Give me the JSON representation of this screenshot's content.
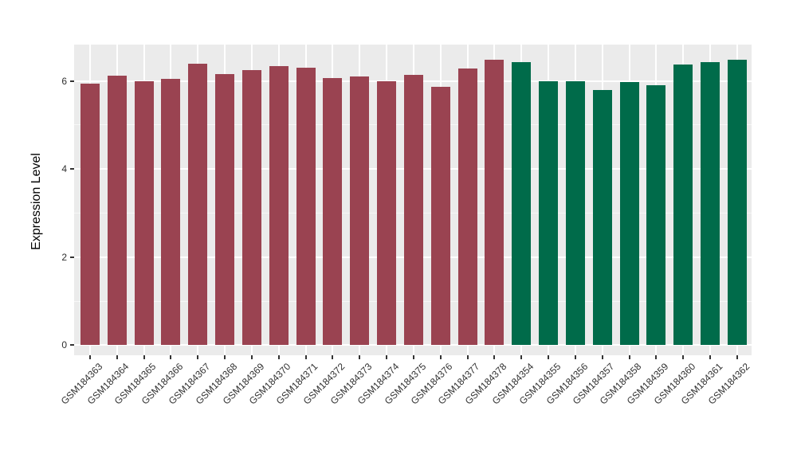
{
  "chart_data": {
    "type": "bar",
    "title": "",
    "xlabel": "",
    "ylabel": "Expression Level",
    "ylim": [
      0,
      6.8
    ],
    "yticks": [
      0,
      2,
      4,
      6
    ],
    "grid": "on",
    "legend_position": "none",
    "panel_background": "#EBEBEB",
    "grid_color": "#FFFFFF",
    "group_colors": {
      "red": "#9A4351",
      "green": "#006B4A"
    },
    "bars": [
      {
        "label": "GSM184363",
        "value": 5.94,
        "group": "red"
      },
      {
        "label": "GSM184364",
        "value": 6.12,
        "group": "red"
      },
      {
        "label": "GSM184365",
        "value": 6.0,
        "group": "red"
      },
      {
        "label": "GSM184366",
        "value": 6.05,
        "group": "red"
      },
      {
        "label": "GSM184367",
        "value": 6.4,
        "group": "red"
      },
      {
        "label": "GSM184368",
        "value": 6.16,
        "group": "red"
      },
      {
        "label": "GSM184369",
        "value": 6.25,
        "group": "red"
      },
      {
        "label": "GSM184370",
        "value": 6.34,
        "group": "red"
      },
      {
        "label": "GSM184371",
        "value": 6.31,
        "group": "red"
      },
      {
        "label": "GSM184372",
        "value": 6.07,
        "group": "red"
      },
      {
        "label": "GSM184373",
        "value": 6.1,
        "group": "red"
      },
      {
        "label": "GSM184374",
        "value": 6.0,
        "group": "red"
      },
      {
        "label": "GSM184375",
        "value": 6.14,
        "group": "red"
      },
      {
        "label": "GSM184376",
        "value": 5.86,
        "group": "red"
      },
      {
        "label": "GSM184377",
        "value": 6.29,
        "group": "red"
      },
      {
        "label": "GSM184378",
        "value": 6.48,
        "group": "red"
      },
      {
        "label": "GSM184354",
        "value": 6.42,
        "group": "green"
      },
      {
        "label": "GSM184355",
        "value": 5.99,
        "group": "green"
      },
      {
        "label": "GSM184356",
        "value": 5.99,
        "group": "green"
      },
      {
        "label": "GSM184357",
        "value": 5.8,
        "group": "green"
      },
      {
        "label": "GSM184358",
        "value": 5.98,
        "group": "green"
      },
      {
        "label": "GSM184359",
        "value": 5.9,
        "group": "green"
      },
      {
        "label": "GSM184360",
        "value": 6.38,
        "group": "green"
      },
      {
        "label": "GSM184361",
        "value": 6.43,
        "group": "green"
      },
      {
        "label": "GSM184362",
        "value": 6.49,
        "group": "green"
      }
    ]
  }
}
